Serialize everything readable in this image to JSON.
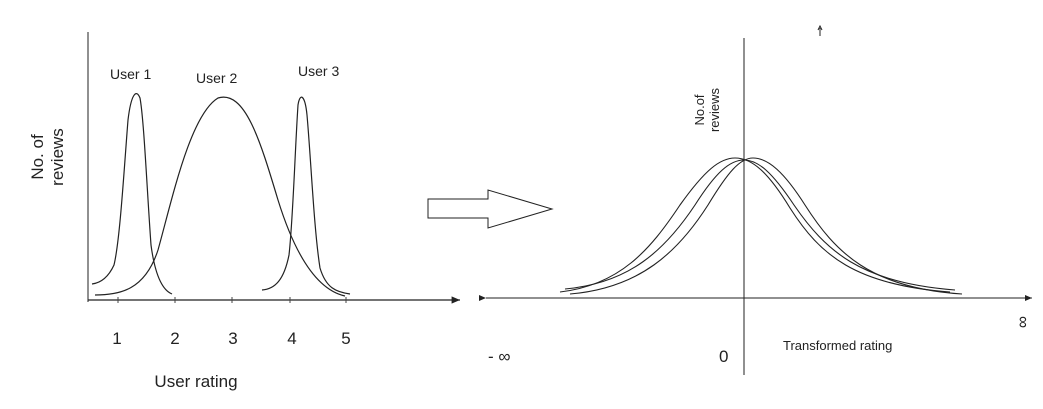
{
  "left_panel": {
    "ylabel_line1": "No. of",
    "ylabel_line2": "reviews",
    "xlabel": "User rating",
    "ticks": [
      "1",
      "2",
      "3",
      "4",
      "5"
    ],
    "curves": [
      {
        "name": "User 1"
      },
      {
        "name": "User 2"
      },
      {
        "name": "User 3"
      }
    ]
  },
  "right_panel": {
    "ylabel_line1": "No.of",
    "ylabel_line2": "reviews",
    "xlabel": "Transformed rating",
    "origin_label": "0",
    "neg_inf_label": "- ∞",
    "pos_inf_label": "∞"
  }
}
